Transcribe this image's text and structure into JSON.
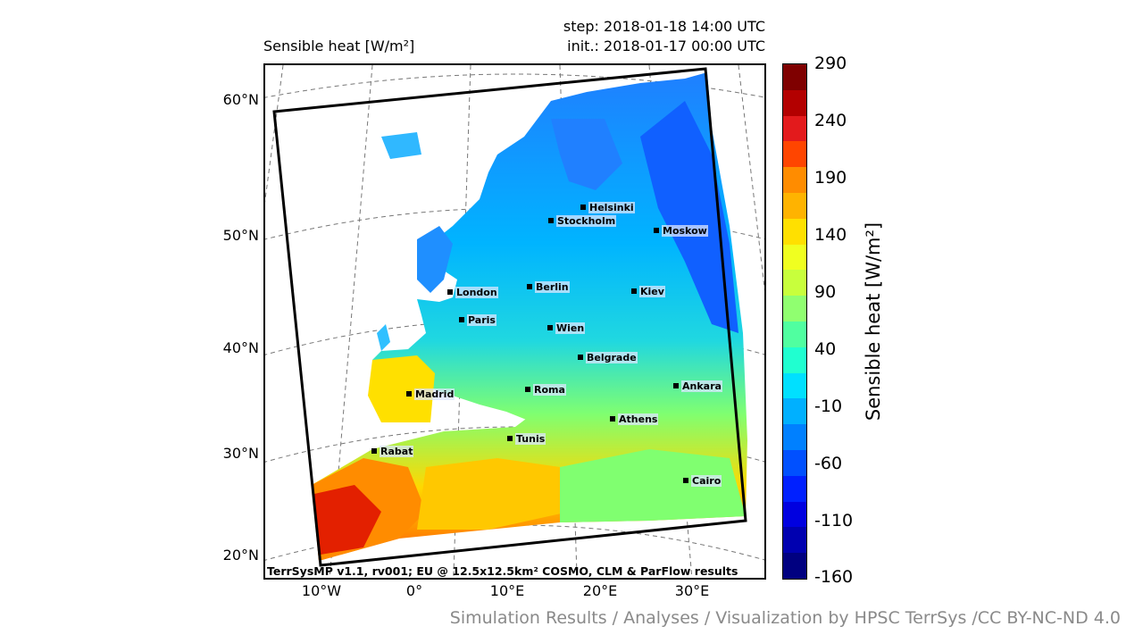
{
  "map": {
    "title": "Sensible heat [W/m²]",
    "step": "step: 2018-01-18 14:00 UTC",
    "init": "init.: 2018-01-17 00:00 UTC",
    "model_info": "TerrSysMP v1.1, rv001; EU @ 12.5x12.5km² COSMO, CLM & ParFlow results",
    "lat_labels": [
      "60°N",
      "50°N",
      "40°N",
      "30°N",
      "20°N"
    ],
    "lon_labels": [
      "10°W",
      "0°",
      "10°E",
      "20°E",
      "30°E"
    ],
    "cities": [
      "Helsinki",
      "Stockholm",
      "Moskow",
      "London",
      "Berlin",
      "Kiev",
      "Paris",
      "Wien",
      "Belgrade",
      "Madrid",
      "Roma",
      "Ankara",
      "Athens",
      "Tunis",
      "Rabat",
      "Cairo"
    ]
  },
  "colorbar": {
    "label": "Sensible heat [W/m²]",
    "ticks": [
      "290",
      "240",
      "190",
      "140",
      "90",
      "40",
      "-10",
      "-60",
      "-110",
      "-160"
    ],
    "colors": [
      "#7f0000",
      "#b30000",
      "#e31a1c",
      "#ff4500",
      "#ff8c00",
      "#ffb300",
      "#ffe000",
      "#f0ff20",
      "#c8ff3c",
      "#90ff70",
      "#50ffa0",
      "#20ffd0",
      "#00e0ff",
      "#00b0ff",
      "#0080ff",
      "#0050ff",
      "#0020ff",
      "#0000e0",
      "#0000b0",
      "#000080"
    ]
  },
  "credit": "Simulation Results / Analyses / Visualization by HPSC TerrSys /CC BY-NC-ND 4.0"
}
